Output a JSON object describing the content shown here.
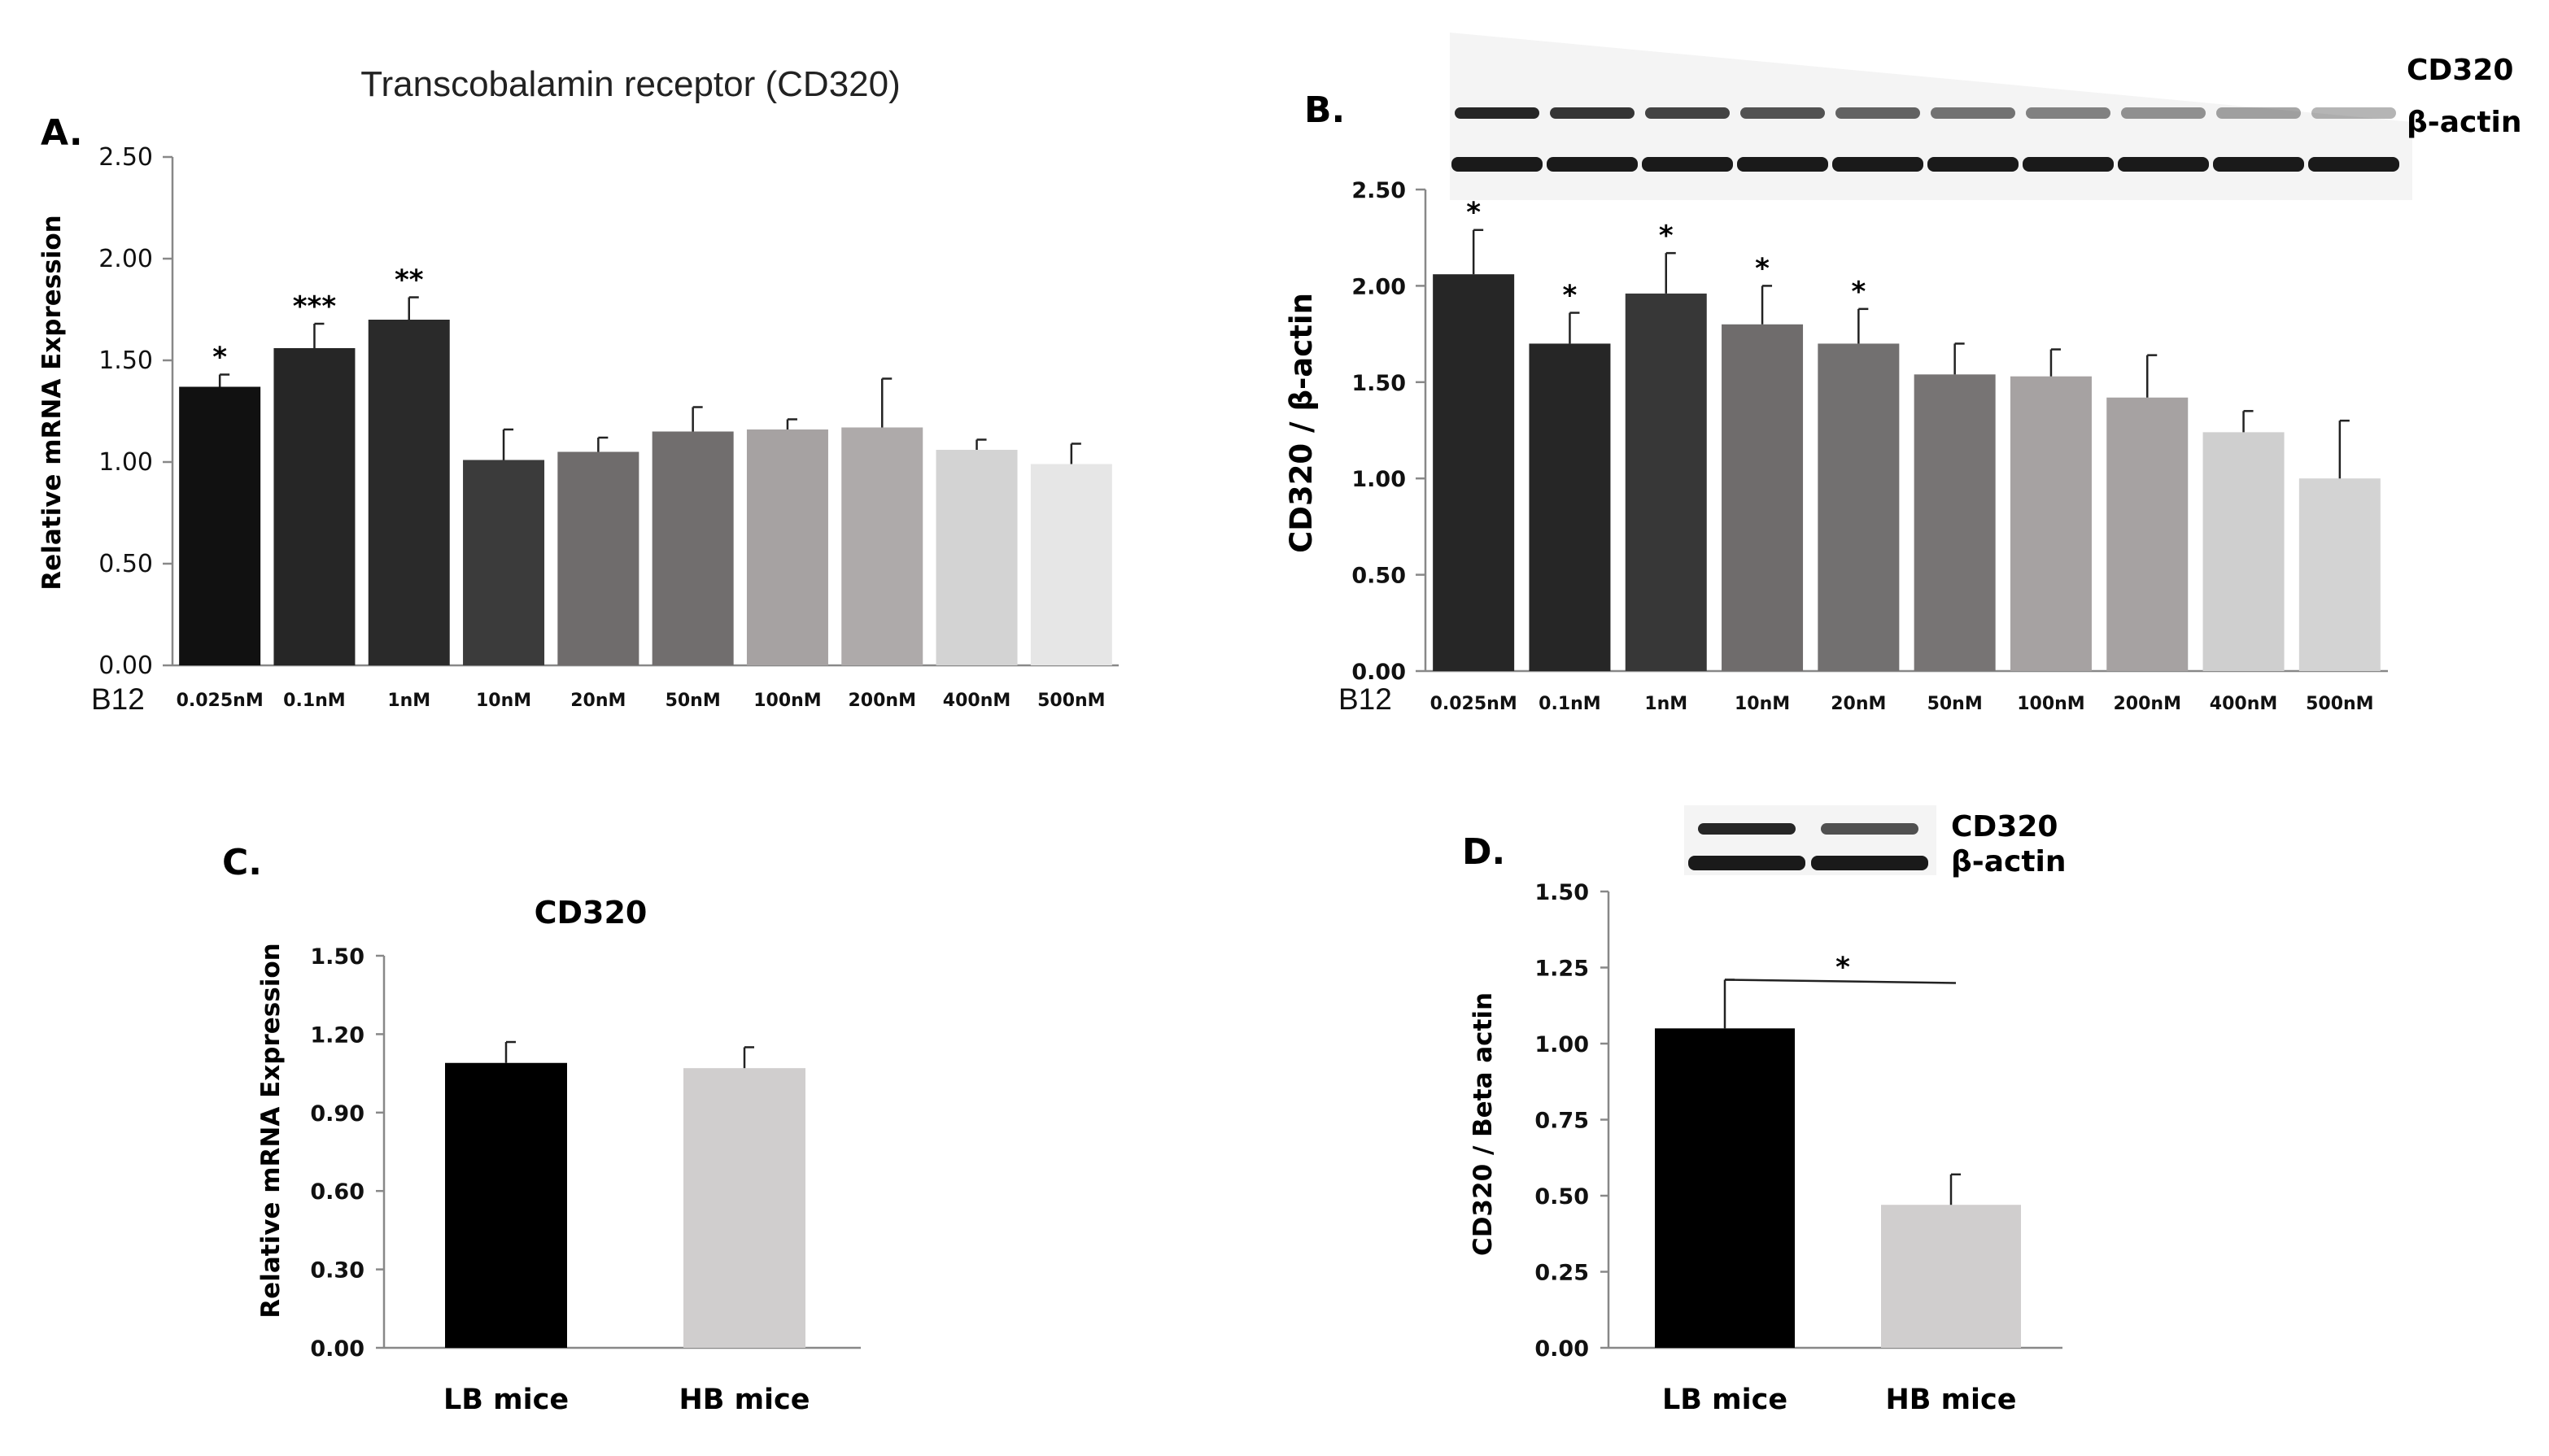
{
  "colors": {
    "A": [
      "#111111",
      "#262626",
      "#2a2a2a",
      "#3b3b3b",
      "#6f6c6c",
      "#716e6e",
      "#a6a2a2",
      "#aeaaaa",
      "#d3d3d3",
      "#e6e6e6"
    ],
    "B": [
      "#262626",
      "#262626",
      "#373737",
      "#6f6c6c",
      "#727070",
      "#777474",
      "#a6a2a2",
      "#a6a2a2",
      "#cfcfcf",
      "#d3d3d3"
    ],
    "C": [
      "#000000",
      "#d0cece"
    ],
    "D": [
      "#000000",
      "#d0cece"
    ],
    "blot_band": "#1a1a1a",
    "blot_bg": "#f3f3f3"
  },
  "chart_data": [
    {
      "id": "A",
      "panel_label": "A.",
      "type": "bar",
      "title": "Transcobalamin receptor (CD320)",
      "xlabel_prefix": "B12",
      "ylabel": "Relative mRNA Expression",
      "ylim": [
        0,
        2.5
      ],
      "yticks": [
        0,
        0.5,
        1.0,
        1.5,
        2.0,
        2.5
      ],
      "ytick_labels": [
        "0.00",
        "0.50",
        "1.00",
        "1.50",
        "2.00",
        "2.50"
      ],
      "categories": [
        "0.025nM",
        "0.1nM",
        "1nM",
        "10nM",
        "20nM",
        "50nM",
        "100nM",
        "200nM",
        "400nM",
        "500nM"
      ],
      "values": [
        1.37,
        1.56,
        1.7,
        1.01,
        1.05,
        1.15,
        1.16,
        1.17,
        1.06,
        0.99
      ],
      "errors": [
        0.06,
        0.12,
        0.11,
        0.15,
        0.07,
        0.12,
        0.05,
        0.24,
        0.05,
        0.1
      ],
      "significance": [
        "*",
        "***",
        "**",
        "",
        "",
        "",
        "",
        "",
        "",
        ""
      ]
    },
    {
      "id": "B",
      "panel_label": "B.",
      "type": "bar",
      "title": "",
      "xlabel_prefix": "B12",
      "ylabel": "CD320 / β-actin",
      "ylim": [
        0,
        2.5
      ],
      "yticks": [
        0,
        0.5,
        1.0,
        1.5,
        2.0,
        2.5
      ],
      "ytick_labels": [
        "0.00",
        "0.50",
        "1.00",
        "1.50",
        "2.00",
        "2.50"
      ],
      "categories": [
        "0.025nM",
        "0.1nM",
        "1nM",
        "10nM",
        "20nM",
        "50nM",
        "100nM",
        "200nM",
        "400nM",
        "500nM"
      ],
      "values": [
        2.06,
        1.7,
        1.96,
        1.8,
        1.7,
        1.54,
        1.53,
        1.42,
        1.24,
        1.0
      ],
      "errors": [
        0.23,
        0.16,
        0.21,
        0.2,
        0.18,
        0.16,
        0.14,
        0.22,
        0.11,
        0.3
      ],
      "significance": [
        "*",
        "*",
        "*",
        "*",
        "*",
        "",
        "",
        "",
        "",
        ""
      ],
      "blot": {
        "labels": [
          "CD320",
          "β-actin"
        ]
      }
    },
    {
      "id": "C",
      "panel_label": "C.",
      "type": "bar",
      "title": "CD320",
      "ylabel": "Relative mRNA Expression",
      "ylim": [
        0,
        1.5
      ],
      "yticks": [
        0,
        0.3,
        0.6,
        0.9,
        1.2,
        1.5
      ],
      "ytick_labels": [
        "0.00",
        "0.30",
        "0.60",
        "0.90",
        "1.20",
        "1.50"
      ],
      "categories": [
        "LB mice",
        "HB mice"
      ],
      "values": [
        1.09,
        1.07
      ],
      "errors": [
        0.08,
        0.08
      ],
      "significance": [
        "",
        ""
      ]
    },
    {
      "id": "D",
      "panel_label": "D.",
      "type": "bar",
      "title": "",
      "ylabel": "CD320 / Beta actin",
      "ylim": [
        0,
        1.5
      ],
      "yticks": [
        0,
        0.25,
        0.5,
        0.75,
        1.0,
        1.25,
        1.5
      ],
      "ytick_labels": [
        "0.00",
        "0.25",
        "0.50",
        "0.75",
        "1.00",
        "1.25",
        "1.50"
      ],
      "categories": [
        "LB mice",
        "HB mice"
      ],
      "values": [
        1.05,
        0.47
      ],
      "errors": [
        0.16,
        0.1
      ],
      "significance": [
        "",
        ""
      ],
      "bracket": {
        "label": "*",
        "from": 0,
        "to": 1
      },
      "blot": {
        "labels": [
          "CD320",
          "β-actin"
        ]
      }
    }
  ]
}
